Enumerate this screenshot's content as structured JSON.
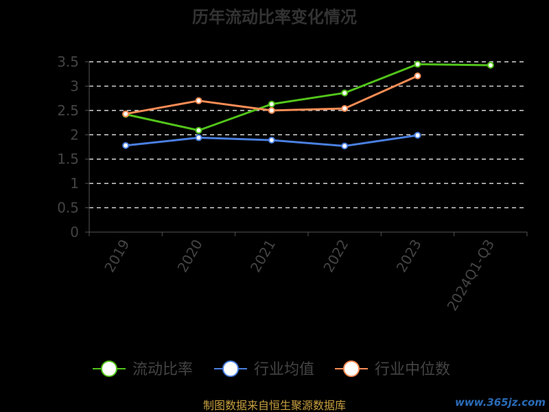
{
  "chart_data": {
    "type": "line",
    "title": "历年流动比率变化情况",
    "categories": [
      "2019",
      "2020",
      "2021",
      "2022",
      "2023",
      "2024Q1-Q3"
    ],
    "y_ticks": [
      "0",
      "0.5",
      "1",
      "1.5",
      "2",
      "2.5",
      "3",
      "3.5"
    ],
    "ylim": [
      0,
      3.5
    ],
    "grid": true,
    "legend_position": "bottom",
    "series": [
      {
        "name": "流动比率",
        "color": "#52c41a",
        "values": [
          2.42,
          2.09,
          2.63,
          2.86,
          3.45,
          3.43
        ]
      },
      {
        "name": "行业均值",
        "color": "#4a7fe0",
        "values": [
          1.78,
          1.94,
          1.89,
          1.77,
          1.99,
          null
        ]
      },
      {
        "name": "行业中位数",
        "color": "#fa8c55",
        "values": [
          2.43,
          2.7,
          2.5,
          2.54,
          3.21,
          null
        ]
      }
    ]
  },
  "footer": "制图数据来自恒生聚源数据库",
  "watermark": "www.365jz.com"
}
